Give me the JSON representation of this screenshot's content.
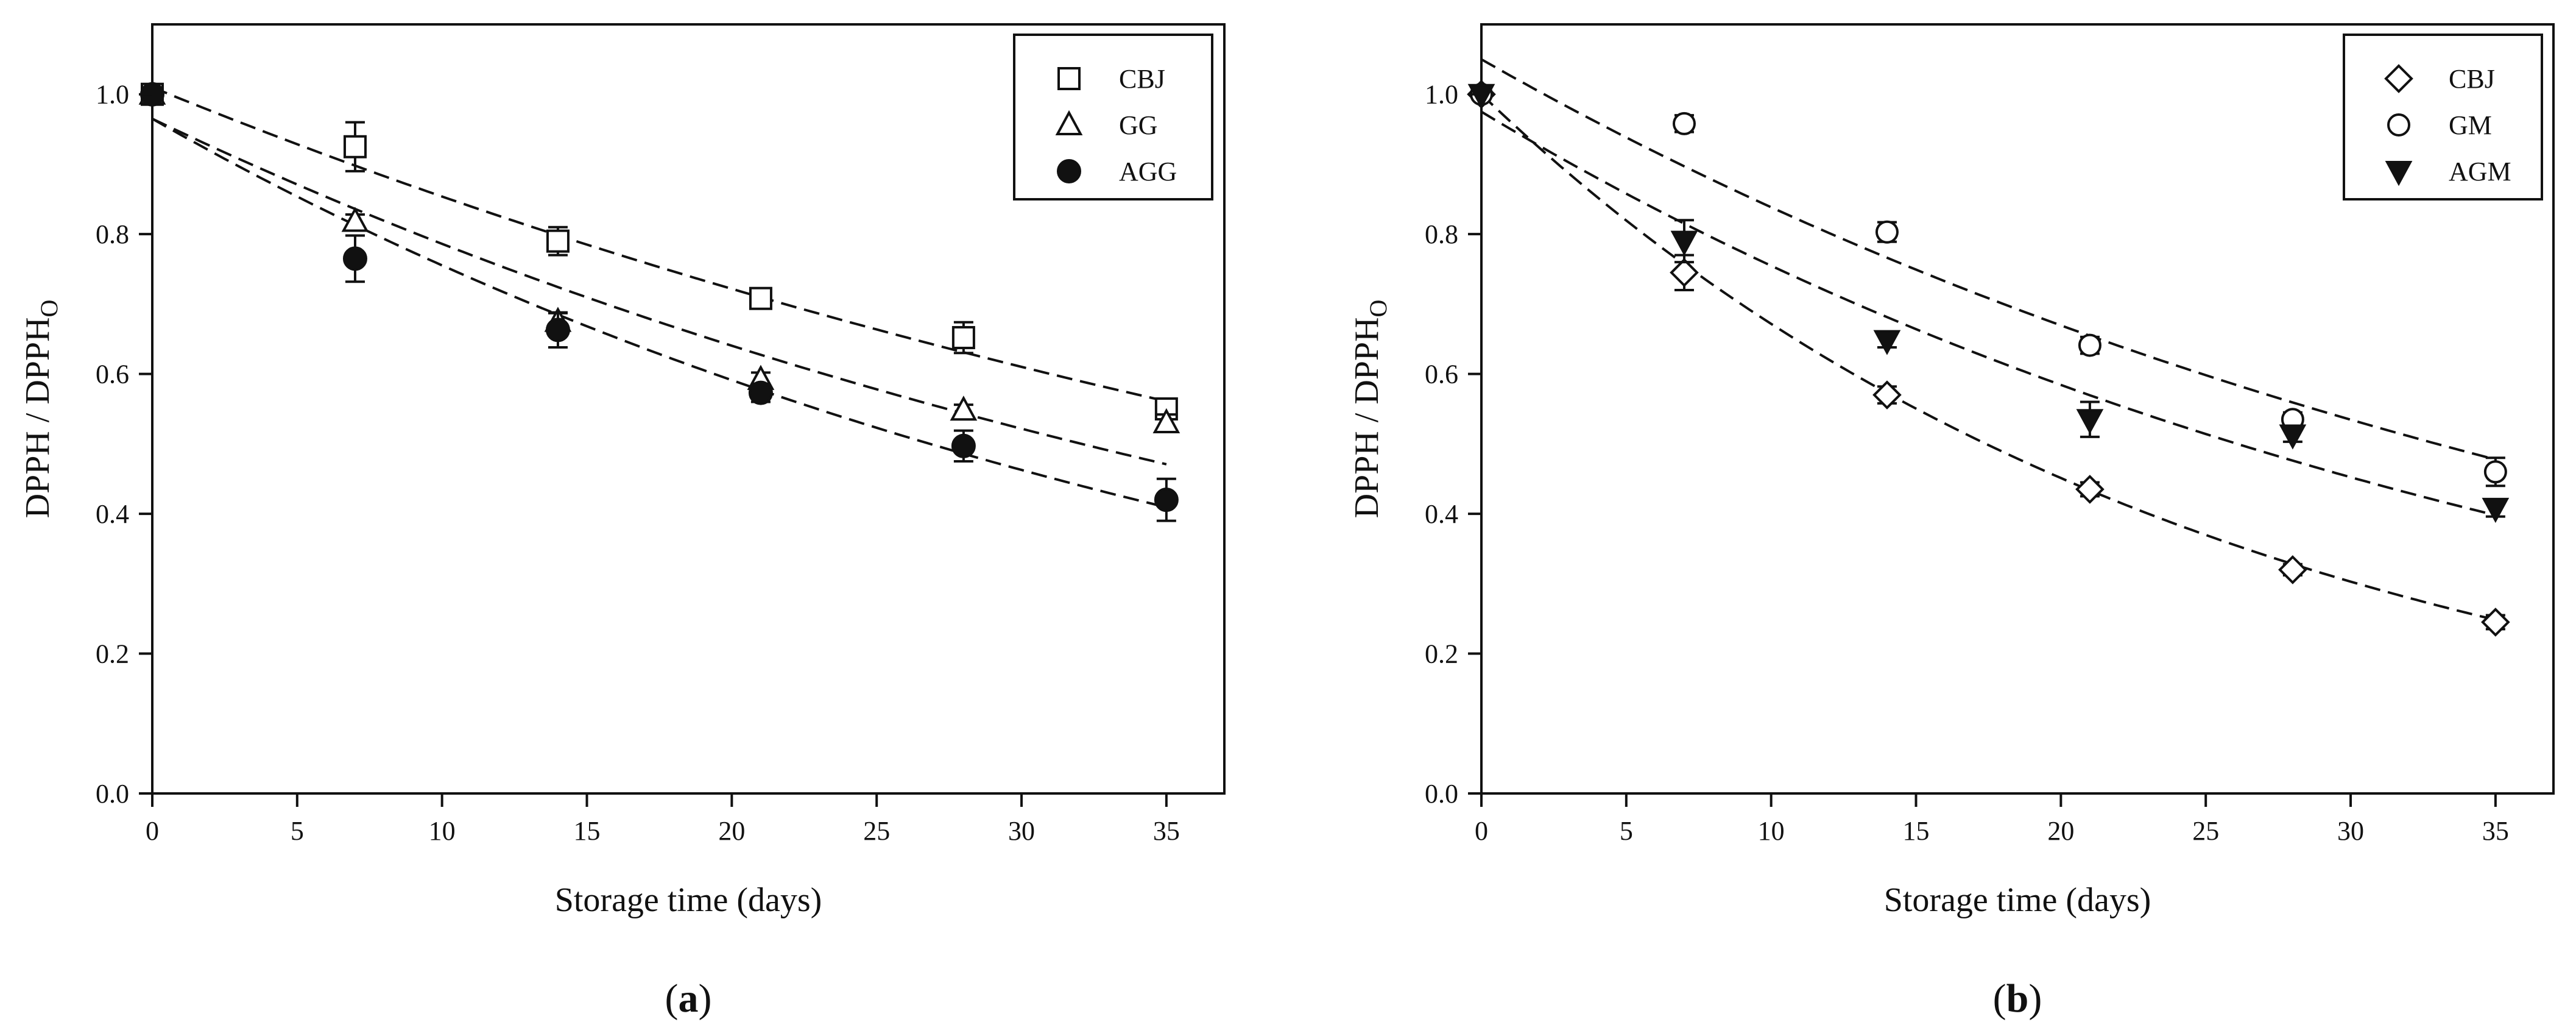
{
  "figure": {
    "panels": [
      {
        "label_open": "(",
        "label_letter": "a",
        "label_close": ")"
      },
      {
        "label_open": "(",
        "label_letter": "b",
        "label_close": ")"
      }
    ]
  },
  "chart_data": [
    {
      "type": "scatter",
      "panel": "a",
      "xlabel": "Storage time (days)",
      "ylabel_main": "DPPH / DPPH",
      "ylabel_sub": "O",
      "xlim": [
        0,
        37
      ],
      "ylim": [
        0,
        1.1
      ],
      "xticks": [
        0,
        5,
        10,
        15,
        20,
        25,
        30,
        35
      ],
      "yticks": [
        0.0,
        0.2,
        0.4,
        0.6,
        0.8,
        1.0
      ],
      "legend_position": "top-right",
      "series": [
        {
          "name": "CBJ",
          "marker": "square-open",
          "x": [
            0,
            7,
            14,
            21,
            28,
            35
          ],
          "y": [
            1.0,
            0.925,
            0.79,
            0.708,
            0.652,
            0.55
          ],
          "err": [
            0.0,
            0.035,
            0.02,
            0.01,
            0.022,
            0.012
          ],
          "fit": {
            "a": 1.01,
            "k": 0.0168
          }
        },
        {
          "name": "GG",
          "marker": "triangle-open",
          "x": [
            0,
            7,
            14,
            21,
            28,
            35
          ],
          "y": [
            1.0,
            0.818,
            0.675,
            0.592,
            0.548,
            0.53
          ],
          "err": [
            0.0,
            0.01,
            0.012,
            0.01,
            0.008,
            0.012
          ],
          "fit": {
            "a": 0.965,
            "k": 0.0205
          }
        },
        {
          "name": "AGG",
          "marker": "circle-filled",
          "x": [
            0,
            7,
            14,
            21,
            28,
            35
          ],
          "y": [
            1.0,
            0.765,
            0.663,
            0.573,
            0.497,
            0.42
          ],
          "err": [
            0.0,
            0.033,
            0.025,
            0.013,
            0.022,
            0.03
          ],
          "fit": {
            "a": 0.965,
            "k": 0.0245
          }
        }
      ]
    },
    {
      "type": "scatter",
      "panel": "b",
      "xlabel": "Storage time (days)",
      "ylabel_main": "DPPH / DPPH",
      "ylabel_sub": "O",
      "xlim": [
        0,
        37
      ],
      "ylim": [
        0,
        1.1
      ],
      "xticks": [
        0,
        5,
        10,
        15,
        20,
        25,
        30,
        35
      ],
      "yticks": [
        0.0,
        0.2,
        0.4,
        0.6,
        0.8,
        1.0
      ],
      "legend_position": "top-right",
      "series": [
        {
          "name": "CBJ",
          "marker": "diamond-open",
          "x": [
            0,
            7,
            14,
            21,
            28,
            35
          ],
          "y": [
            1.0,
            0.745,
            0.57,
            0.435,
            0.32,
            0.245
          ],
          "err": [
            0.0,
            0.025,
            0.012,
            0.01,
            0.008,
            0.01
          ],
          "fit": {
            "a": 1.0,
            "k": 0.0398
          }
        },
        {
          "name": "GM",
          "marker": "circle-open",
          "x": [
            0,
            7,
            14,
            21,
            28,
            35
          ],
          "y": [
            1.0,
            0.958,
            0.803,
            0.641,
            0.535,
            0.46
          ],
          "err": [
            0.0,
            0.012,
            0.014,
            0.012,
            0.01,
            0.02
          ],
          "fit": {
            "a": 1.05,
            "k": 0.0225
          }
        },
        {
          "name": "AGM",
          "marker": "triangle-down-filled",
          "x": [
            0,
            7,
            14,
            21,
            28,
            35
          ],
          "y": [
            1.0,
            0.79,
            0.648,
            0.535,
            0.513,
            0.408
          ],
          "err": [
            0.0,
            0.03,
            0.01,
            0.025,
            0.01,
            0.012
          ],
          "fit": {
            "a": 0.975,
            "k": 0.0256
          }
        }
      ]
    }
  ]
}
